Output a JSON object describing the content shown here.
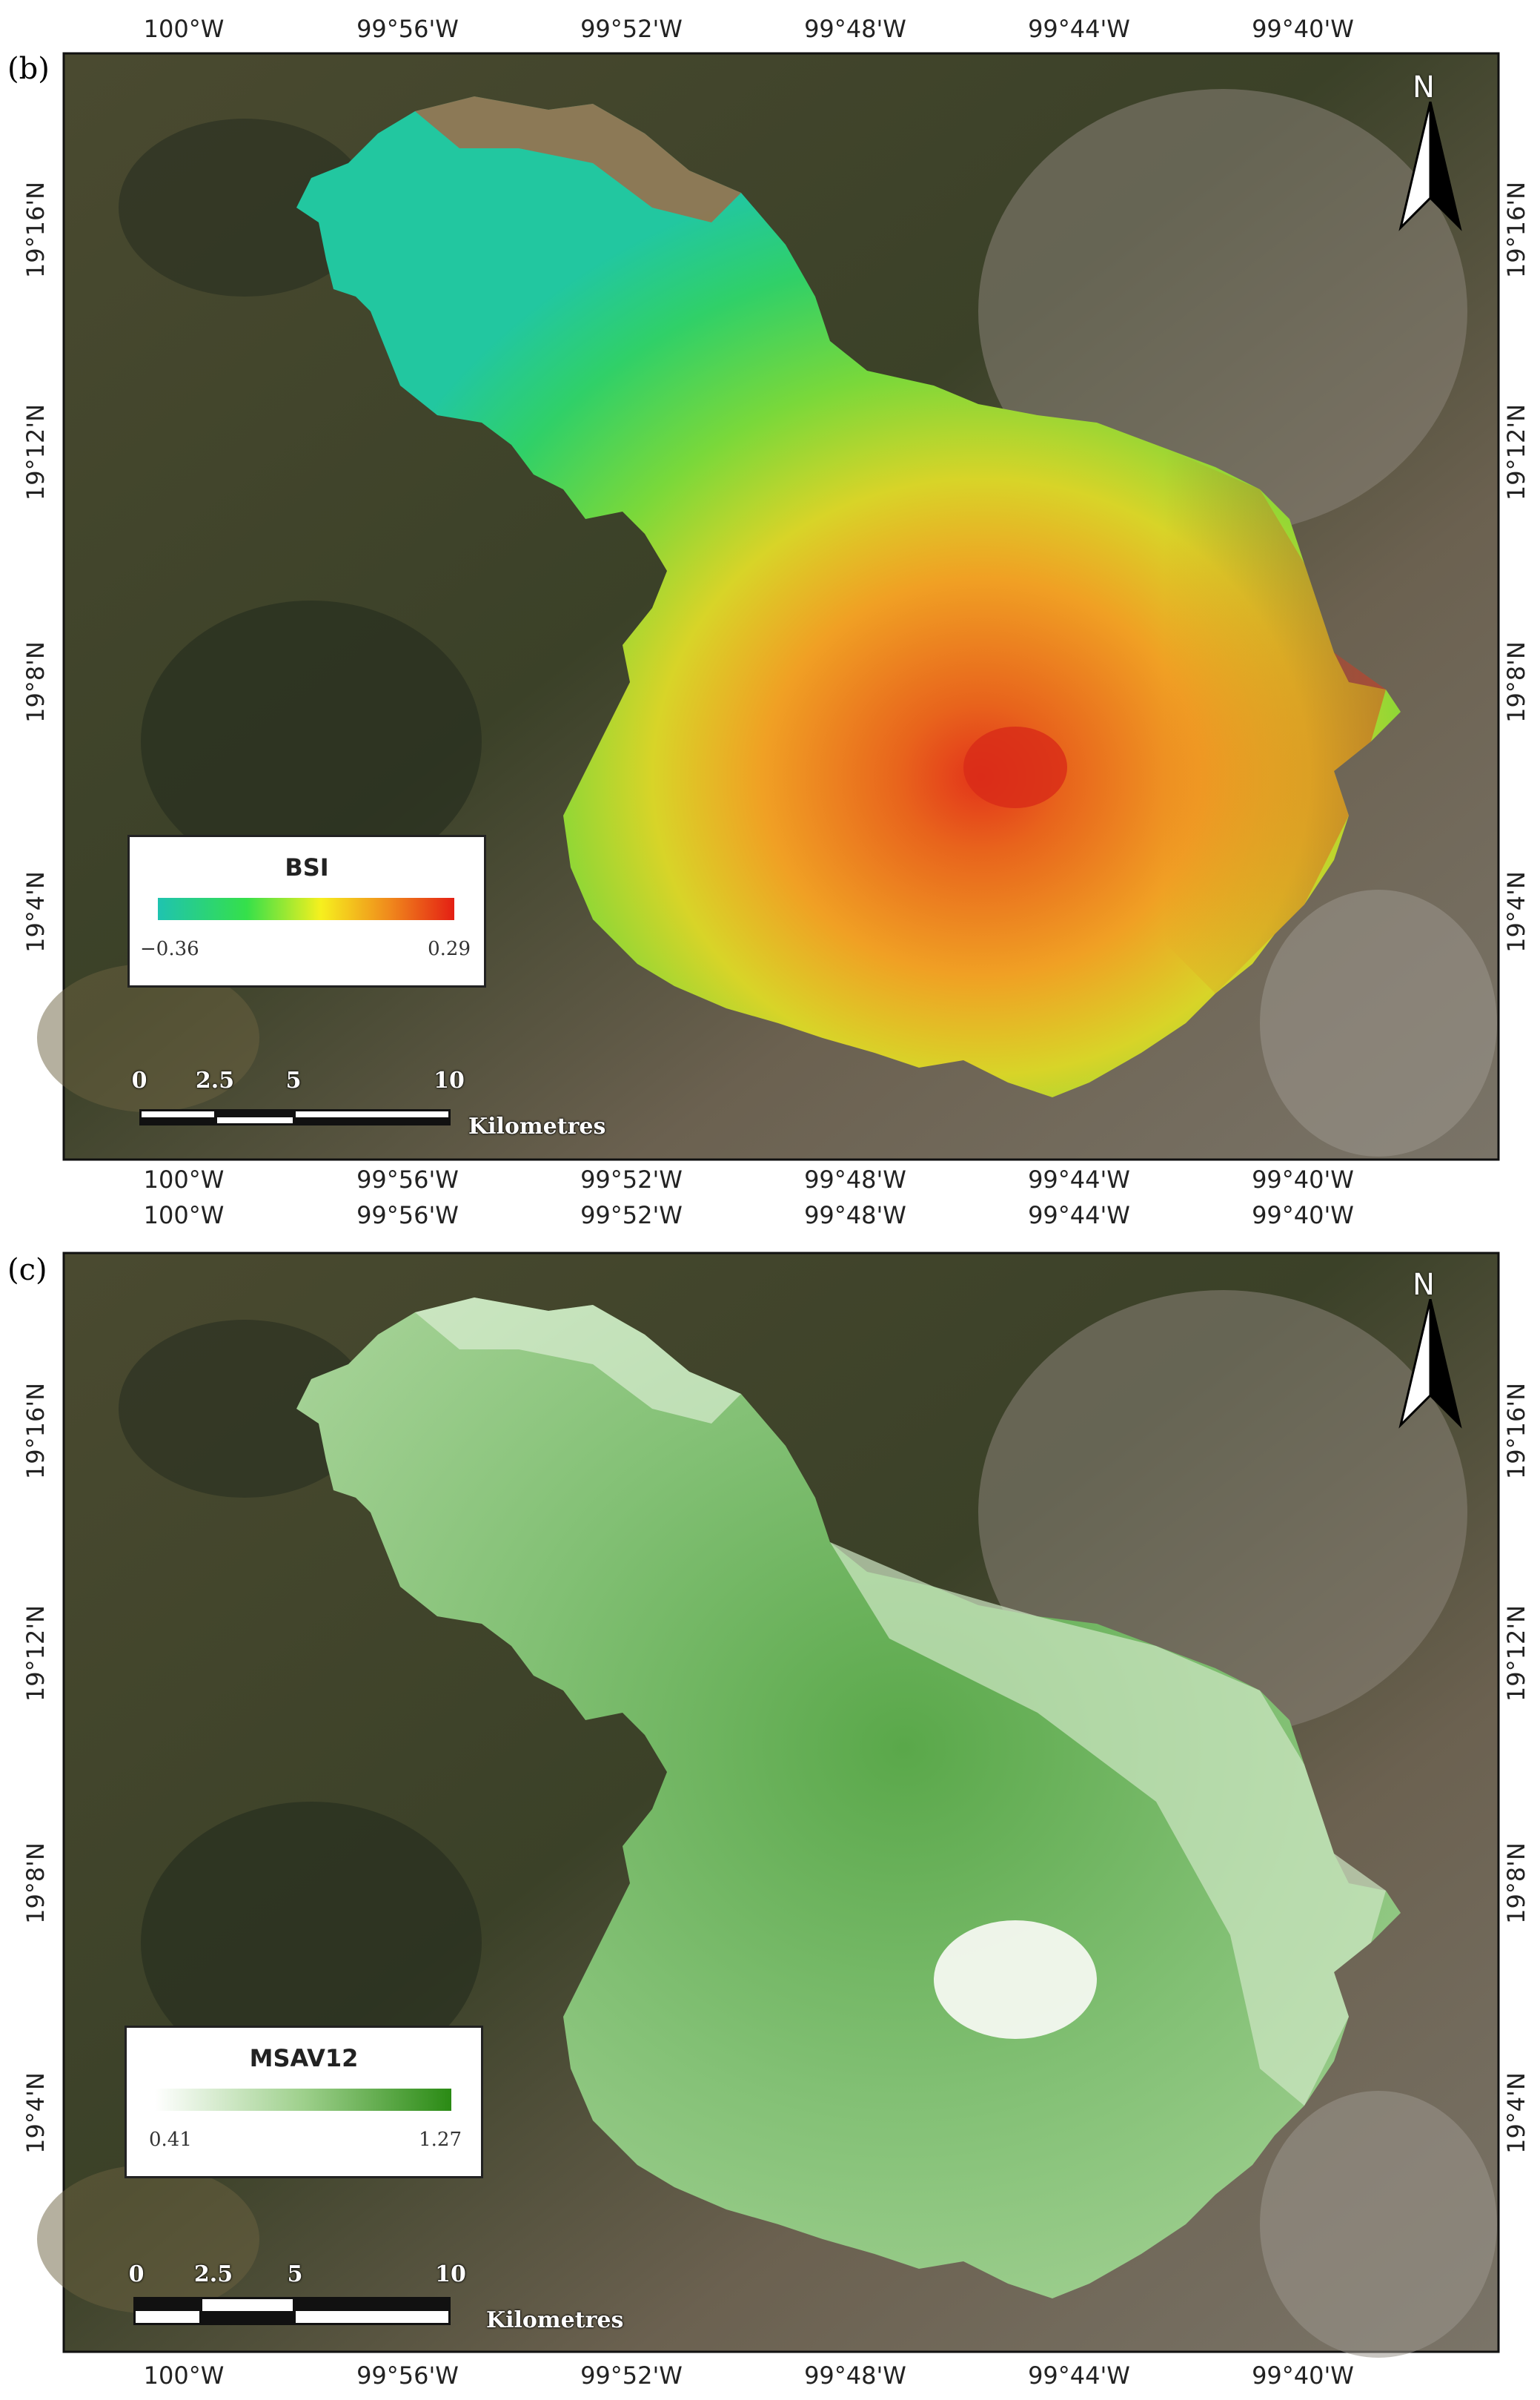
{
  "panels": [
    {
      "label": "(b)",
      "lon_ticks": [
        "100°W",
        "99°56'W",
        "99°52'W",
        "99°48'W",
        "99°44'W",
        "99°40'W"
      ],
      "lat_ticks": [
        "19°16'N",
        "19°12'N",
        "19°8'N",
        "19°4'N"
      ],
      "legend": {
        "title": "BSI",
        "min": "−0.36",
        "max": "0.29",
        "colors": [
          "#1fc3b0",
          "#35e04a",
          "#f6f01e",
          "#f08a1c",
          "#e41f14"
        ]
      },
      "scale": {
        "ticks": [
          "0",
          "2.5",
          "5",
          "10"
        ],
        "units": "Kilometres"
      },
      "north": "N"
    },
    {
      "label": "(c)",
      "lon_ticks": [
        "100°W",
        "99°56'W",
        "99°52'W",
        "99°48'W",
        "99°44'W",
        "99°40'W"
      ],
      "lat_ticks": [
        "19°16'N",
        "19°12'N",
        "19°8'N",
        "19°4'N"
      ],
      "legend": {
        "title": "MSAV12",
        "min": "0.41",
        "max": "1.27",
        "colors": [
          "#ffffff",
          "#9ed08c",
          "#2a8a14"
        ]
      },
      "scale": {
        "ticks": [
          "0",
          "2.5",
          "5",
          "10"
        ],
        "units": "Kilometres"
      },
      "north": "N"
    }
  ]
}
